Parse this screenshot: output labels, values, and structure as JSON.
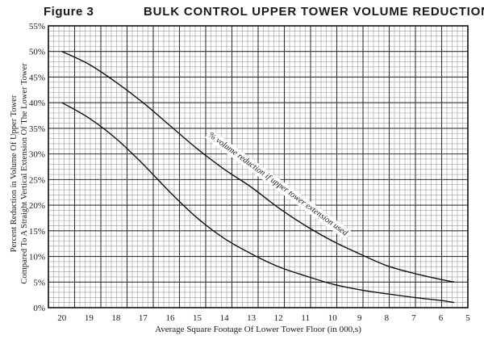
{
  "figure_label": "Figure 3",
  "chart_data": {
    "type": "line",
    "title": "BULK CONTROL UPPER TOWER VOLUME REDUCTION",
    "xlabel": "Average Square Footage Of Lower Tower Floor (in 000,s)",
    "ylabel_lines": [
      "Percent Reduction in Volume Of Upper Tower",
      "Compared To A Straight Vertical Extension Of The Lower Tower"
    ],
    "x_reversed": true,
    "xlim": [
      20.5,
      5
    ],
    "ylim": [
      0,
      55
    ],
    "x_ticks": [
      20,
      19,
      18,
      17,
      16,
      15,
      14,
      13,
      12,
      11,
      10,
      9,
      8,
      7,
      6,
      5
    ],
    "x_tick_labels": [
      "20",
      "19",
      "18",
      "17",
      "16",
      "15",
      "14",
      "13",
      "12",
      "11",
      "10",
      "9",
      "8",
      "7",
      "6",
      "5"
    ],
    "y_ticks": [
      0,
      5,
      10,
      15,
      20,
      25,
      30,
      35,
      40,
      45,
      50,
      55
    ],
    "y_tick_labels": [
      "0%",
      "5%",
      "10%",
      "15%",
      "20%",
      "25%",
      "30%",
      "35%",
      "40%",
      "45%",
      "50%",
      "55%"
    ],
    "grid": true,
    "series": [
      {
        "x": [
          20,
          19,
          18,
          17,
          16,
          15,
          14,
          13,
          12,
          11,
          10,
          9,
          8,
          7,
          6,
          5.5
        ],
        "y": [
          50,
          47.5,
          44,
          40,
          35.5,
          31,
          27,
          23.5,
          19.5,
          16,
          13,
          10.5,
          8.2,
          6.7,
          5.5,
          5
        ]
      },
      {
        "x": [
          20,
          19,
          18,
          17,
          16,
          15,
          14,
          13,
          12,
          11,
          10,
          9,
          8,
          7,
          6,
          5.5
        ],
        "y": [
          40,
          37,
          33,
          28,
          22.5,
          17.5,
          13.5,
          10.5,
          8,
          6.2,
          4.6,
          3.5,
          2.7,
          2,
          1.4,
          1
        ]
      }
    ],
    "annotations": [
      {
        "text": "% volume reduction if upper tower extension used",
        "x": 14.6,
        "y": 33.5,
        "angle_deg": 36
      }
    ]
  }
}
